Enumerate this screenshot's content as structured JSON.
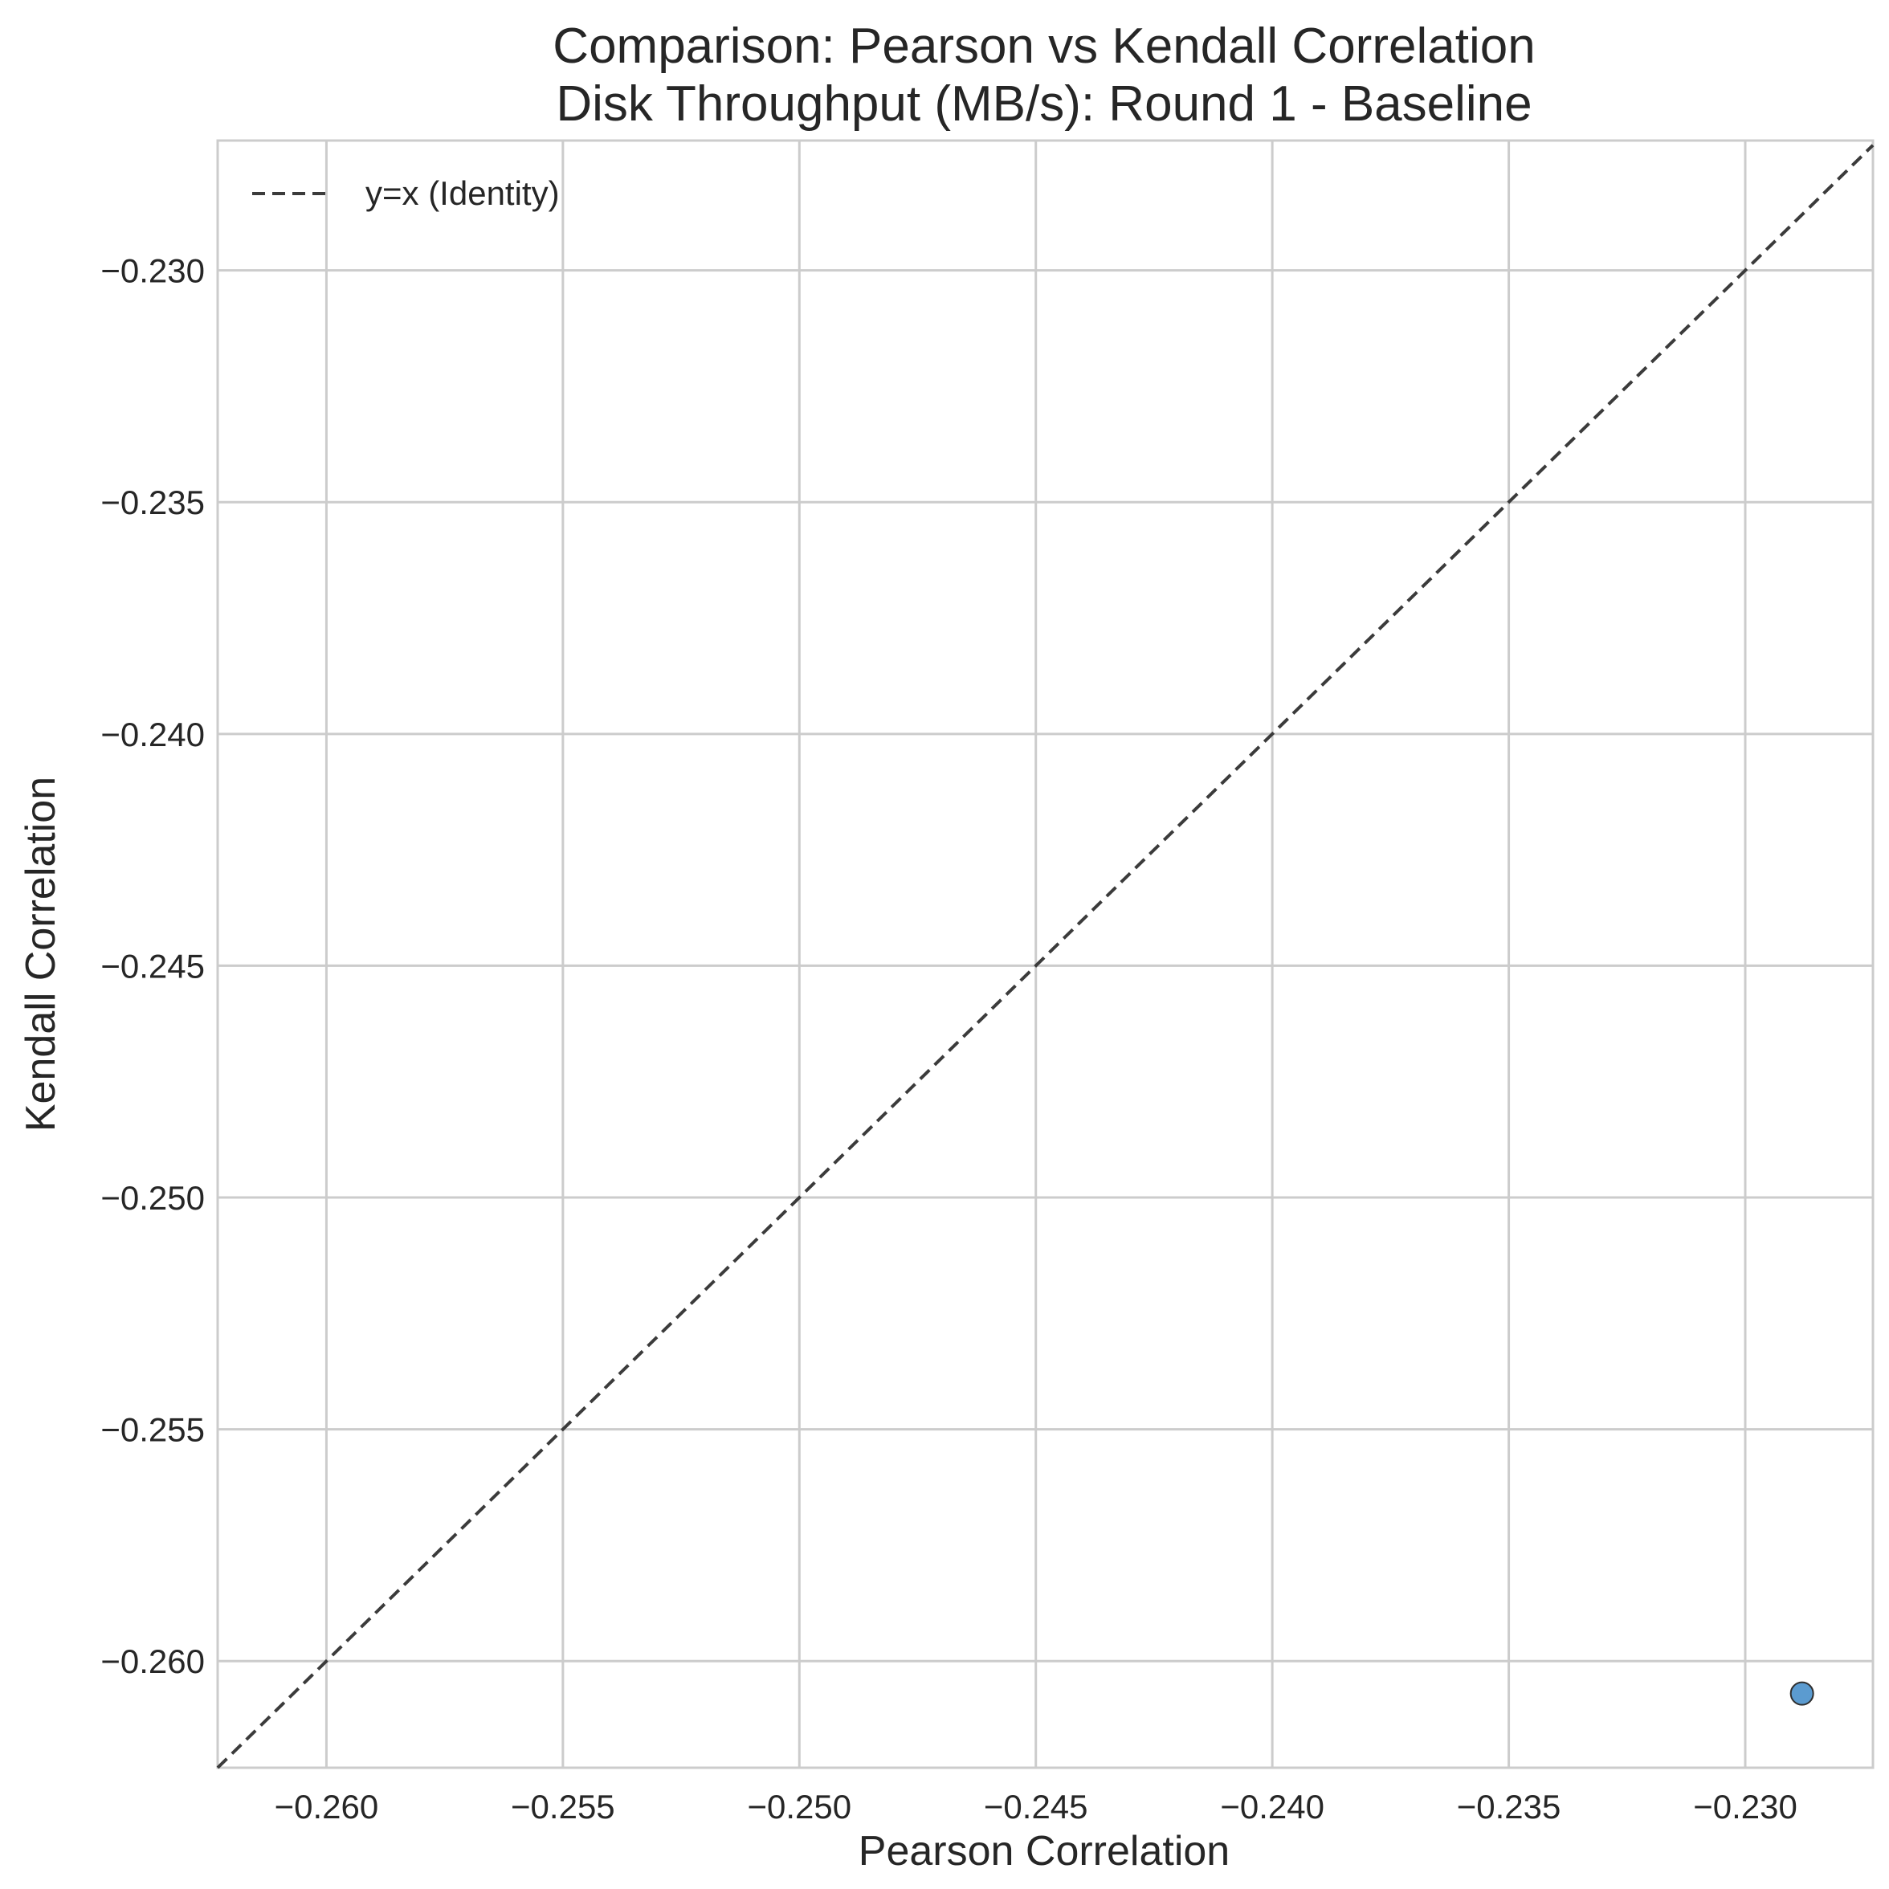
{
  "chart_data": {
    "type": "scatter",
    "title_lines": [
      "Comparison: Pearson vs Kendall Correlation",
      "Disk Throughput (MB/s): Round 1 - Baseline"
    ],
    "xlabel": "Pearson Correlation",
    "ylabel": "Kendall Correlation",
    "xlim": [
      -0.2623,
      -0.2273
    ],
    "ylim": [
      -0.2623,
      -0.2272
    ],
    "xticks": [
      -0.26,
      -0.255,
      -0.25,
      -0.245,
      -0.24,
      -0.235,
      -0.23
    ],
    "xtick_labels": [
      "−0.260",
      "−0.255",
      "−0.250",
      "−0.245",
      "−0.240",
      "−0.235",
      "−0.230"
    ],
    "yticks": [
      -0.23,
      -0.235,
      -0.24,
      -0.245,
      -0.25,
      -0.255,
      -0.26
    ],
    "ytick_labels": [
      "−0.230",
      "−0.235",
      "−0.240",
      "−0.245",
      "−0.250",
      "−0.255",
      "−0.260"
    ],
    "grid": true,
    "legend": {
      "placement": "top-left",
      "entries": [
        {
          "label": "y=x (Identity)",
          "style": "dashed",
          "color": "#3b3b3b"
        }
      ]
    },
    "reference_line": {
      "label": "y=x (Identity)",
      "slope": 1,
      "intercept": 0
    },
    "points": [
      {
        "x": -0.2288,
        "y": -0.2607,
        "color": "#5b9bd0"
      }
    ]
  }
}
